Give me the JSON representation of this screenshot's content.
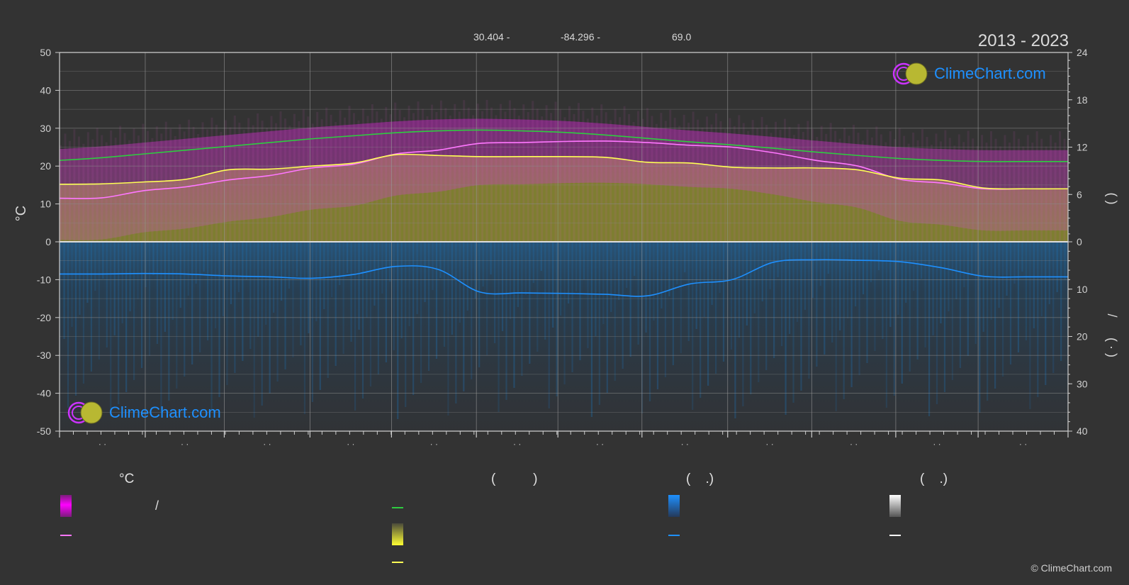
{
  "header": {
    "lat": "30.404 -",
    "lon": "-84.296 -",
    "elev": "69.0",
    "years": "2013 - 2023"
  },
  "brand": {
    "logo_text": "ClimeChart.com",
    "copyright": "© ClimeChart.com"
  },
  "legend": {
    "col1_head": "°C",
    "col1_sep": "/",
    "col2_head": "(          )",
    "col3_head": "(    .)",
    "col4_head": "(    .)"
  },
  "colors": {
    "background": "#333333",
    "sunshine_line": "#2ecc40",
    "temp_line": "#ff77ff",
    "daylight_line": "#ffff55",
    "precip_line": "#1e90ff",
    "temp_band": "#cc22cc",
    "daylight_fill": "#8c8c30",
    "rain_fill": "#1a5a8a",
    "logo_text": "#1e90ff"
  },
  "icons": {
    "logo": "climechart-logo-icon"
  },
  "chart_data": {
    "type": "line",
    "months": [
      "· ·",
      "· ·",
      "· ·",
      "· ·",
      "· ·",
      "· ·",
      "· ·",
      "· ·",
      "· ·",
      "· ·",
      "· ·",
      "· ·"
    ],
    "x": [
      0,
      0.5,
      1,
      1.5,
      2,
      2.5,
      3,
      3.5,
      4,
      4.5,
      5,
      5.5,
      6,
      6.5,
      7,
      7.5,
      8,
      8.5,
      9,
      9.5,
      10,
      10.5,
      11,
      11.5,
      12
    ],
    "left_axis": {
      "label": "°C",
      "ylim": [
        -50,
        50
      ],
      "ticks": [
        50,
        40,
        30,
        20,
        10,
        0,
        -10,
        -20,
        -30,
        -40,
        -50
      ]
    },
    "right_axis_top": {
      "label": "(    )",
      "ylim": [
        0,
        24
      ],
      "ticks": [
        24,
        18,
        12,
        6,
        0
      ]
    },
    "right_axis_bottom": {
      "label": "(  ·  )",
      "ylim": [
        0,
        40
      ],
      "ticks": [
        0,
        10,
        20,
        30,
        40
      ]
    },
    "grid": true,
    "series": [
      {
        "key": "sunshine",
        "values": [
          21.5,
          22.2,
          23.2,
          24.2,
          25.2,
          26.2,
          27.2,
          28.0,
          28.8,
          29.3,
          29.5,
          29.3,
          28.9,
          28.2,
          27.3,
          26.4,
          25.6,
          24.7,
          23.7,
          22.8,
          22.0,
          21.5,
          21.2,
          21.2,
          21.2
        ]
      },
      {
        "key": "temp_mean",
        "values": [
          11.5,
          11.6,
          13.5,
          14.5,
          16.3,
          17.5,
          19.5,
          20.5,
          23.2,
          24.2,
          26.0,
          26.2,
          26.5,
          26.6,
          26.2,
          25.5,
          25.0,
          23.5,
          21.5,
          20.0,
          16.5,
          15.5,
          14.0,
          14.0,
          14.0
        ]
      },
      {
        "key": "daylight",
        "values": [
          15.2,
          15.3,
          15.8,
          16.5,
          19.0,
          19.2,
          20.0,
          20.8,
          23.0,
          22.8,
          22.5,
          22.5,
          22.5,
          22.3,
          21.0,
          20.8,
          19.7,
          19.5,
          19.5,
          19.0,
          16.8,
          16.3,
          14.2,
          14.0,
          14.0
        ]
      },
      {
        "key": "precip",
        "values": [
          6.8,
          6.8,
          6.7,
          6.8,
          7.2,
          7.4,
          7.7,
          6.9,
          5.2,
          5.8,
          10.6,
          10.8,
          10.9,
          11.1,
          11.4,
          8.9,
          8.0,
          4.3,
          3.8,
          3.9,
          4.2,
          5.5,
          7.3,
          7.4,
          7.4
        ]
      }
    ]
  }
}
